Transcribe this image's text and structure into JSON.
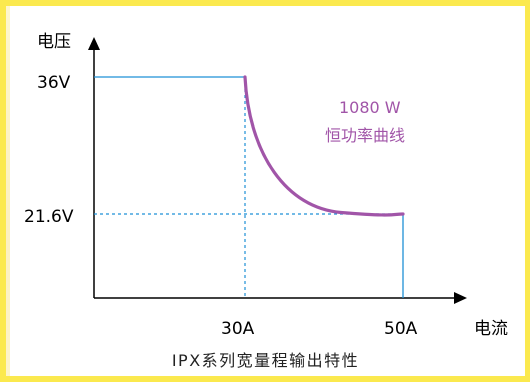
{
  "chart_data": {
    "type": "line",
    "title": "IPX系列宽量程输出特性",
    "xlabel": "电流",
    "ylabel": "电压",
    "x_ticks": [
      "30A",
      "50A"
    ],
    "y_ticks": [
      "36V",
      "21.6V"
    ],
    "annotation": {
      "line1": "1080 W",
      "line2": "恒功率曲线"
    },
    "series": [
      {
        "values": [
          {
            "x": 0,
            "y": 36
          },
          {
            "x": 30,
            "y": 36
          },
          {
            "x": 50,
            "y": 21.6
          },
          {
            "x": 50,
            "y": 0
          }
        ]
      }
    ],
    "power_w": 1080,
    "colors": {
      "limit_line": "#1e90d6",
      "curve": "#a155a8",
      "annotation": "#a155a8",
      "axis": "#000000"
    }
  }
}
